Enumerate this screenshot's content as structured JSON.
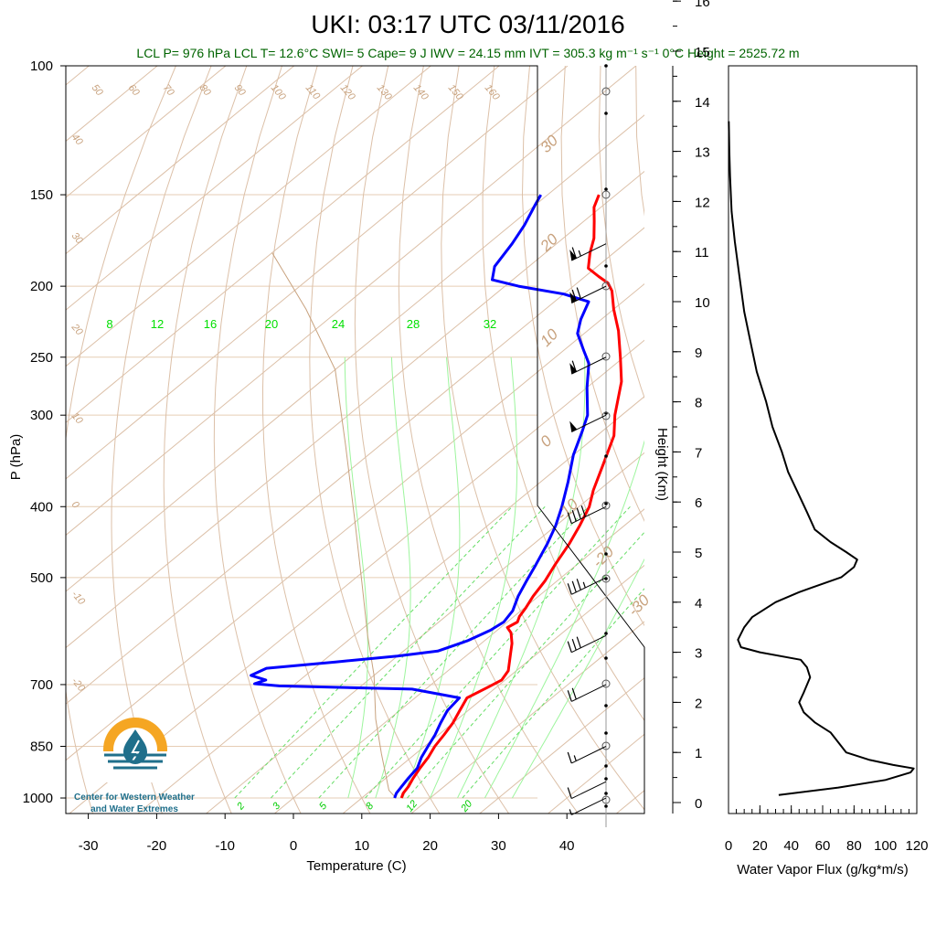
{
  "header": {
    "title": "UKI: 03:17 UTC 03/11/2016",
    "info": "LCL P= 976 hPa  LCL T= 12.6°C  SWI= 5  Cape= 9 J  IWV = 24.15 mm  IVT = 305.3 kg m⁻¹ s⁻¹  0°C Height = 2525.72 m"
  },
  "logo": {
    "line1": "Center for Western Weather",
    "line2": "and Water Extremes"
  },
  "colors": {
    "temperature": "#ff0000",
    "dewpoint": "#0000ff",
    "dry_adiabat": "#c8a27e",
    "moist_adiabat": "#00e000",
    "mixing_ratio": "#00cc00",
    "flux": "#000000"
  },
  "chart_data": [
    {
      "type": "line",
      "name": "skew-T log-P diagram",
      "xlabel": "Temperature (C)",
      "ylabel": "P (hPa)",
      "x_ticks": [
        "-30",
        "-20",
        "-10",
        "0",
        "10",
        "20",
        "30",
        "40"
      ],
      "y_ticks": [
        "100",
        "150",
        "200",
        "250",
        "300",
        "400",
        "500",
        "700",
        "850",
        "1000"
      ],
      "xlim": [
        -33,
        54
      ],
      "ylim": [
        1050,
        100
      ],
      "dry_adiabat_labels": [
        "50",
        "60",
        "70",
        "80",
        "90",
        "100",
        "110",
        "120",
        "130",
        "140",
        "150",
        "160",
        "40",
        "30",
        "20",
        "10",
        "0",
        "-10",
        "-20"
      ],
      "moist_adiabat_labels": [
        "8",
        "12",
        "16",
        "20",
        "24",
        "28",
        "32"
      ],
      "mixing_ratio_labels": [
        "2",
        "3",
        "5",
        "8",
        "12",
        "20"
      ],
      "isotherm_labels": [
        "30",
        "20",
        "10",
        "0",
        "-10",
        "-20",
        "-30"
      ],
      "series": [
        {
          "name": "Temperature",
          "points": [
            [
              15.8,
              1000
            ],
            [
              15.2,
              985
            ],
            [
              14.8,
              965
            ],
            [
              14.0,
              940
            ],
            [
              13.2,
              910
            ],
            [
              12.5,
              880
            ],
            [
              11.5,
              850
            ],
            [
              10.8,
              820
            ],
            [
              10.0,
              790
            ],
            [
              8.8,
              760
            ],
            [
              7.6,
              730
            ],
            [
              8.8,
              705
            ],
            [
              9.5,
              690
            ],
            [
              8.8,
              670
            ],
            [
              6.5,
              640
            ],
            [
              4.5,
              615
            ],
            [
              2.5,
              595
            ],
            [
              1.0,
              585
            ],
            [
              1.5,
              575
            ],
            [
              0.8,
              565
            ],
            [
              0.2,
              550
            ],
            [
              -0.8,
              530
            ],
            [
              -1.8,
              505
            ],
            [
              -3.2,
              480
            ],
            [
              -4.8,
              450
            ],
            [
              -6.5,
              425
            ],
            [
              -8.5,
              400
            ],
            [
              -10.8,
              380
            ],
            [
              -14,
              350
            ],
            [
              -17.5,
              320
            ],
            [
              -21,
              300
            ],
            [
              -26,
              270
            ],
            [
              -30.5,
              250
            ],
            [
              -35.5,
              230
            ],
            [
              -40,
              215
            ],
            [
              -43.5,
              203
            ],
            [
              -45.5,
              198
            ],
            [
              -48,
              194
            ],
            [
              -51,
              189
            ],
            [
              -53.5,
              180
            ],
            [
              -55.5,
              172
            ],
            [
              -58.5,
              163
            ],
            [
              -61,
              156
            ],
            [
              -62.5,
              150
            ]
          ]
        },
        {
          "name": "Dewpoint",
          "points": [
            [
              14.8,
              1000
            ],
            [
              14.2,
              985
            ],
            [
              13.8,
              965
            ],
            [
              13.3,
              940
            ],
            [
              12.8,
              910
            ],
            [
              11.5,
              880
            ],
            [
              10.5,
              850
            ],
            [
              9.5,
              820
            ],
            [
              8.2,
              790
            ],
            [
              7.0,
              760
            ],
            [
              6.5,
              730
            ],
            [
              -2,
              710
            ],
            [
              -22,
              703
            ],
            [
              -26,
              698
            ],
            [
              -25,
              690
            ],
            [
              -28,
              680
            ],
            [
              -27,
              665
            ],
            [
              -18,
              652
            ],
            [
              -10,
              640
            ],
            [
              -5,
              630
            ],
            [
              -2.5,
              610
            ],
            [
              -1,
              590
            ],
            [
              -0.5,
              575
            ],
            [
              -1.2,
              555
            ],
            [
              -3,
              530
            ],
            [
              -4.5,
              505
            ],
            [
              -6,
              480
            ],
            [
              -8,
              450
            ],
            [
              -10,
              425
            ],
            [
              -12.5,
              400
            ],
            [
              -16,
              370
            ],
            [
              -20,
              340
            ],
            [
              -23,
              315
            ],
            [
              -25,
              300
            ],
            [
              -30,
              275
            ],
            [
              -34,
              255
            ],
            [
              -37,
              245
            ],
            [
              -41,
              232
            ],
            [
              -43,
              222
            ],
            [
              -45,
              210
            ],
            [
              -50,
              205
            ],
            [
              -58,
              200
            ],
            [
              -63,
              196
            ],
            [
              -65,
              188
            ],
            [
              -66.5,
              175
            ],
            [
              -68,
              165
            ],
            [
              -70,
              155
            ],
            [
              -71,
              150
            ]
          ]
        }
      ],
      "wind_barbs": [
        {
          "pressure": 1000,
          "speed_kt": 5
        },
        {
          "pressure": 950,
          "speed_kt": 10
        },
        {
          "pressure": 850,
          "speed_kt": 15
        },
        {
          "pressure": 700,
          "speed_kt": 20
        },
        {
          "pressure": 600,
          "speed_kt": 30
        },
        {
          "pressure": 500,
          "speed_kt": 35
        },
        {
          "pressure": 400,
          "speed_kt": 40
        },
        {
          "pressure": 300,
          "speed_kt": 50
        },
        {
          "pressure": 250,
          "speed_kt": 60
        },
        {
          "pressure": 200,
          "speed_kt": 70
        },
        {
          "pressure": 175,
          "speed_kt": 65
        }
      ]
    },
    {
      "type": "line",
      "name": "water vapor flux profile",
      "xlabel": "Water Vapor Flux (g/kg*m/s)",
      "ylabel": "Height (Km)",
      "x_ticks": [
        "0",
        "20",
        "40",
        "60",
        "80",
        "100",
        "120"
      ],
      "y_ticks": [
        "0",
        "1",
        "2",
        "3",
        "4",
        "5",
        "6",
        "7",
        "8",
        "9",
        "10",
        "11",
        "12",
        "13",
        "14",
        "15",
        "16"
      ],
      "xlim": [
        0,
        120
      ],
      "ylim": [
        0,
        16.5
      ],
      "points": [
        [
          32,
          0.15
        ],
        [
          70,
          0.3
        ],
        [
          100,
          0.45
        ],
        [
          116,
          0.6
        ],
        [
          118,
          0.68
        ],
        [
          105,
          0.75
        ],
        [
          90,
          0.85
        ],
        [
          75,
          1.0
        ],
        [
          70,
          1.2
        ],
        [
          65,
          1.4
        ],
        [
          55,
          1.6
        ],
        [
          48,
          1.8
        ],
        [
          45,
          2.0
        ],
        [
          48,
          2.2
        ],
        [
          52,
          2.5
        ],
        [
          50,
          2.7
        ],
        [
          46,
          2.85
        ],
        [
          20,
          3.0
        ],
        [
          8,
          3.1
        ],
        [
          6,
          3.25
        ],
        [
          10,
          3.5
        ],
        [
          15,
          3.7
        ],
        [
          30,
          4.0
        ],
        [
          45,
          4.2
        ],
        [
          72,
          4.5
        ],
        [
          80,
          4.7
        ],
        [
          82,
          4.85
        ],
        [
          75,
          5.0
        ],
        [
          65,
          5.2
        ],
        [
          55,
          5.45
        ],
        [
          50,
          5.8
        ],
        [
          44,
          6.2
        ],
        [
          38,
          6.6
        ],
        [
          34,
          7.0
        ],
        [
          28,
          7.5
        ],
        [
          24,
          8.0
        ],
        [
          18,
          8.6
        ],
        [
          14,
          9.2
        ],
        [
          10,
          9.8
        ],
        [
          7,
          10.5
        ],
        [
          4,
          11.2
        ],
        [
          2,
          11.8
        ],
        [
          1,
          12.5
        ],
        [
          0.5,
          13.0
        ],
        [
          0.2,
          13.6
        ]
      ]
    }
  ]
}
